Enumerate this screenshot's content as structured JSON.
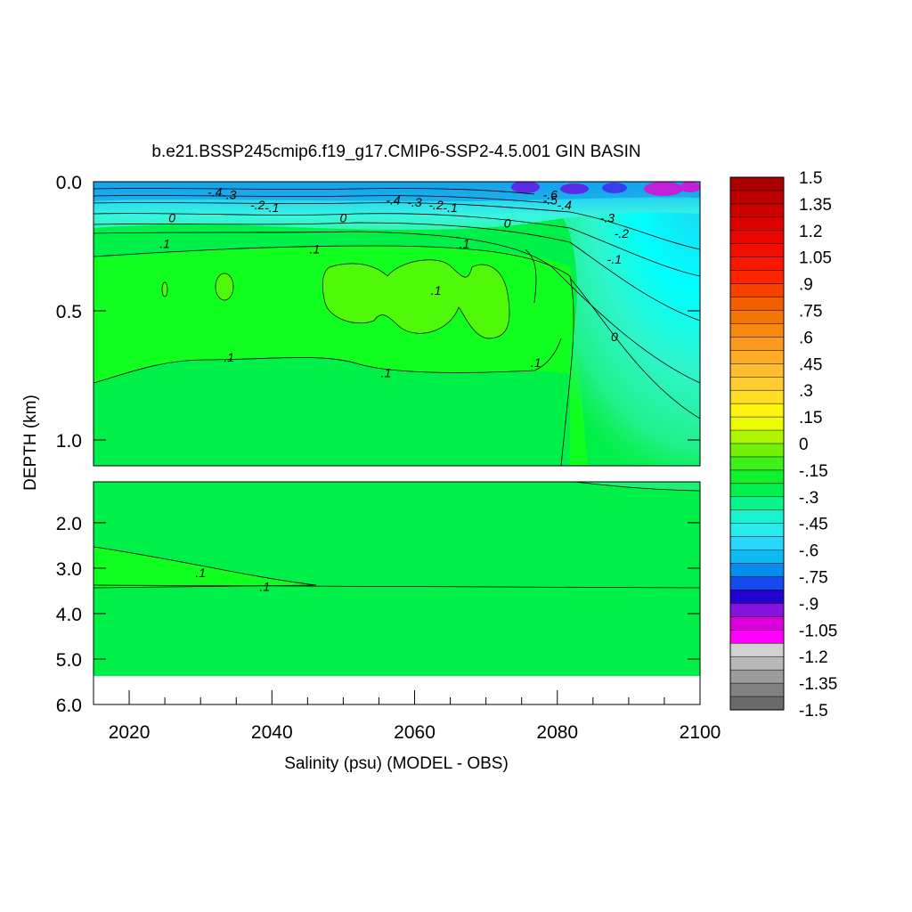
{
  "chart_data": {
    "type": "heatmap",
    "title": "b.e21.BSSP245cmip6.f19_g17.CMIP6-SSP2-4.5.001 GIN BASIN",
    "xlabel": "Salinity (psu) (MODEL - OBS)",
    "ylabel": "DEPTH (km)",
    "x_ticks": [
      "2020",
      "2040",
      "2060",
      "2080",
      "2100"
    ],
    "x_tick_values": [
      2020,
      2040,
      2060,
      2080,
      2100
    ],
    "xlim": [
      2015,
      2100
    ],
    "upper_panel": {
      "ylim": [
        0.0,
        1.1
      ],
      "y_ticks": [
        "0.0",
        "0.5",
        "1.0"
      ],
      "y_tick_values": [
        0.0,
        0.5,
        1.0
      ]
    },
    "lower_panel": {
      "ylim": [
        1.1,
        6.0
      ],
      "y_ticks": [
        "2.0",
        "3.0",
        "4.0",
        "5.0",
        "6.0"
      ],
      "y_tick_values": [
        2.0,
        3.0,
        4.0,
        5.0,
        6.0
      ]
    },
    "colorbar": {
      "labels": [
        "1.5",
        "1.35",
        "1.2",
        "1.05",
        ".9",
        ".75",
        ".6",
        ".45",
        ".3",
        ".15",
        "0",
        "-.15",
        "-.3",
        "-.45",
        "-.6",
        "-.75",
        "-.9",
        "-1.05",
        "-1.2",
        "-1.35",
        "-1.5"
      ],
      "range": [
        -1.5,
        1.5
      ],
      "levels": 40
    },
    "contour_labels": [
      {
        "text": "-.4",
        "year": 2032,
        "depth": 0.04
      },
      {
        "text": "-.3",
        "year": 2034,
        "depth": 0.05
      },
      {
        "text": "-.2",
        "year": 2038,
        "depth": 0.09
      },
      {
        "text": "-.1",
        "year": 2040,
        "depth": 0.1
      },
      {
        "text": "0",
        "year": 2026,
        "depth": 0.14
      },
      {
        "text": "0",
        "year": 2050,
        "depth": 0.14
      },
      {
        "text": "-.4",
        "year": 2057,
        "depth": 0.07
      },
      {
        "text": "-.3",
        "year": 2060,
        "depth": 0.08
      },
      {
        "text": "-.2",
        "year": 2063,
        "depth": 0.09
      },
      {
        "text": "-.1",
        "year": 2065,
        "depth": 0.1
      },
      {
        "text": "0",
        "year": 2073,
        "depth": 0.16
      },
      {
        "text": "-.6",
        "year": 2079,
        "depth": 0.05
      },
      {
        "text": "-.5",
        "year": 2079,
        "depth": 0.07
      },
      {
        "text": "-.4",
        "year": 2081,
        "depth": 0.09
      },
      {
        "text": "-.3",
        "year": 2087,
        "depth": 0.14
      },
      {
        "text": "-.2",
        "year": 2089,
        "depth": 0.2
      },
      {
        "text": "-.1",
        "year": 2088,
        "depth": 0.3
      },
      {
        "text": ".1",
        "year": 2025,
        "depth": 0.24
      },
      {
        "text": ".1",
        "year": 2046,
        "depth": 0.26
      },
      {
        "text": ".1",
        "year": 2067,
        "depth": 0.24
      },
      {
        "text": ".1",
        "year": 2063,
        "depth": 0.42
      },
      {
        "text": "0",
        "year": 2088,
        "depth": 0.6
      },
      {
        "text": ".1",
        "year": 2034,
        "depth": 0.68
      },
      {
        "text": ".1",
        "year": 2056,
        "depth": 0.74
      },
      {
        "text": ".1",
        "year": 2077,
        "depth": 0.7
      },
      {
        "text": ".1",
        "year": 2030,
        "depth": 3.1
      },
      {
        "text": ".1",
        "year": 2039,
        "depth": 3.4
      }
    ]
  }
}
